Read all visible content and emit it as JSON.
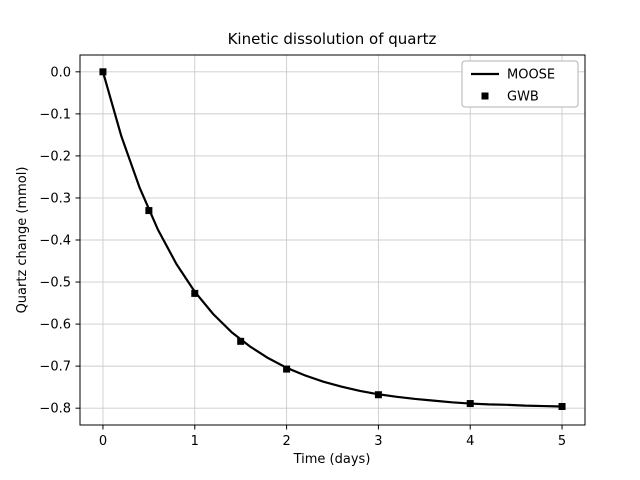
{
  "chart_data": {
    "type": "line",
    "title": "Kinetic dissolution of quartz",
    "xlabel": "Time (days)",
    "ylabel": "Quartz change (mmol)",
    "xlim": [
      -0.25,
      5.25
    ],
    "ylim": [
      -0.84,
      0.04
    ],
    "xticks": [
      0,
      1,
      2,
      3,
      4,
      5
    ],
    "xtick_labels": [
      "0",
      "1",
      "2",
      "3",
      "4",
      "5"
    ],
    "yticks": [
      0.0,
      -0.1,
      -0.2,
      -0.3,
      -0.4,
      -0.5,
      -0.6,
      -0.7,
      -0.8
    ],
    "ytick_labels": [
      "0.0",
      "−0.1",
      "−0.2",
      "−0.3",
      "−0.4",
      "−0.5",
      "−0.6",
      "−0.7",
      "−0.8"
    ],
    "grid": true,
    "legend_position": "upper right",
    "colors": {
      "line": "#000000",
      "marker": "#000000",
      "grid": "#cccccc",
      "axes_border": "#000000",
      "legend_border": "#b3b3b3",
      "background": "#ffffff"
    },
    "series": [
      {
        "name": "MOOSE",
        "type": "line",
        "x": [
          0,
          0.2,
          0.4,
          0.6,
          0.8,
          1.0,
          1.2,
          1.4,
          1.6,
          1.8,
          2.0,
          2.2,
          2.4,
          2.6,
          2.8,
          3.0,
          3.2,
          3.4,
          3.6,
          3.8,
          4.0,
          4.2,
          4.4,
          4.6,
          4.8,
          5.0
        ],
        "y": [
          0.0,
          -0.153,
          -0.276,
          -0.376,
          -0.457,
          -0.523,
          -0.576,
          -0.619,
          -0.653,
          -0.681,
          -0.704,
          -0.722,
          -0.737,
          -0.749,
          -0.759,
          -0.767,
          -0.773,
          -0.778,
          -0.782,
          -0.786,
          -0.789,
          -0.791,
          -0.792,
          -0.794,
          -0.795,
          -0.796
        ]
      },
      {
        "name": "GWB",
        "type": "scatter",
        "marker": "square",
        "x": [
          0,
          0.5,
          1.0,
          1.5,
          2.0,
          3.0,
          4.0,
          5.0
        ],
        "y": [
          0.0,
          -0.33,
          -0.527,
          -0.641,
          -0.707,
          -0.768,
          -0.789,
          -0.796
        ]
      }
    ]
  }
}
